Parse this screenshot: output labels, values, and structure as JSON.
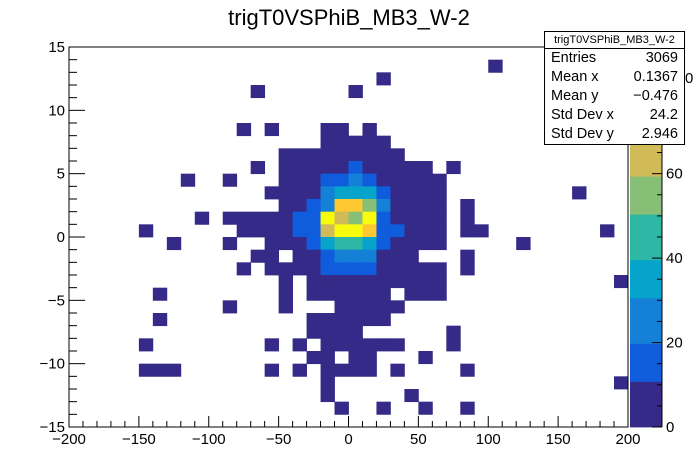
{
  "chart_data": {
    "type": "heatmap",
    "title": "trigT0VSPhiB_MB3_W-2",
    "xlabel": "",
    "ylabel": "",
    "xlim": [
      -200,
      200
    ],
    "ylim": [
      -15,
      15
    ],
    "x_ticks": [
      -200,
      -150,
      -100,
      -50,
      0,
      50,
      100,
      150,
      200
    ],
    "x_tick_labels": [
      "−200",
      "−150",
      "−100",
      "−50",
      "0",
      "50",
      "100",
      "150",
      "200"
    ],
    "y_ticks": [
      -15,
      -10,
      -5,
      0,
      5,
      10,
      15
    ],
    "y_tick_labels": [
      "−15",
      "−10",
      "−5",
      "0",
      "5",
      "10",
      "15"
    ],
    "z_ticks": [
      0,
      20,
      40,
      60,
      80
    ],
    "z_tick_labels": [
      "0",
      "20",
      "40",
      "60",
      "80"
    ],
    "zlim": [
      0,
      90
    ],
    "bin_width_x": 10,
    "bin_height_y": 1,
    "colormap": [
      "#352a87",
      "#0f5cdd",
      "#1481d6",
      "#06a4ca",
      "#2eb7a4",
      "#87bf77",
      "#d1bb59",
      "#fec832",
      "#f9fb0e"
    ],
    "cells": [
      [
        105,
        13.5,
        2
      ],
      [
        25,
        12.5,
        2
      ],
      [
        -65,
        11.5,
        2
      ],
      [
        5,
        11.5,
        2
      ],
      [
        -75,
        8.5,
        2
      ],
      [
        -55,
        8.5,
        2
      ],
      [
        -15,
        8.5,
        3
      ],
      [
        -5,
        8.5,
        3
      ],
      [
        15,
        8.5,
        2
      ],
      [
        -15,
        7.5,
        4
      ],
      [
        -5,
        7.5,
        4
      ],
      [
        5,
        7.5,
        3
      ],
      [
        15,
        7.5,
        3
      ],
      [
        25,
        7.5,
        2
      ],
      [
        -45,
        6.5,
        2
      ],
      [
        -35,
        6.5,
        2
      ],
      [
        -25,
        6.5,
        2
      ],
      [
        -15,
        6.5,
        4
      ],
      [
        -5,
        6.5,
        5
      ],
      [
        5,
        6.5,
        4
      ],
      [
        15,
        6.5,
        3
      ],
      [
        25,
        6.5,
        3
      ],
      [
        35,
        6.5,
        2
      ],
      [
        -65,
        5.5,
        2
      ],
      [
        -45,
        5.5,
        3
      ],
      [
        -35,
        5.5,
        3
      ],
      [
        -25,
        5.5,
        4
      ],
      [
        -15,
        5.5,
        5
      ],
      [
        -5,
        5.5,
        8
      ],
      [
        5,
        5.5,
        10
      ],
      [
        15,
        5.5,
        6
      ],
      [
        25,
        5.5,
        4
      ],
      [
        35,
        5.5,
        3
      ],
      [
        45,
        5.5,
        2
      ],
      [
        55,
        5.5,
        2
      ],
      [
        75,
        5.5,
        2
      ],
      [
        -115,
        4.5,
        2
      ],
      [
        -85,
        4.5,
        2
      ],
      [
        -45,
        4.5,
        3
      ],
      [
        -35,
        4.5,
        4
      ],
      [
        -25,
        4.5,
        5
      ],
      [
        -15,
        4.5,
        12
      ],
      [
        -5,
        4.5,
        18
      ],
      [
        5,
        4.5,
        20
      ],
      [
        15,
        4.5,
        15
      ],
      [
        25,
        4.5,
        8
      ],
      [
        35,
        4.5,
        5
      ],
      [
        45,
        4.5,
        3
      ],
      [
        55,
        4.5,
        2
      ],
      [
        65,
        4.5,
        2
      ],
      [
        -55,
        3.5,
        2
      ],
      [
        -45,
        3.5,
        3
      ],
      [
        -35,
        3.5,
        4
      ],
      [
        -25,
        3.5,
        6
      ],
      [
        -15,
        3.5,
        22
      ],
      [
        -5,
        3.5,
        35
      ],
      [
        5,
        3.5,
        38
      ],
      [
        15,
        3.5,
        30
      ],
      [
        25,
        3.5,
        12
      ],
      [
        35,
        3.5,
        6
      ],
      [
        45,
        3.5,
        3
      ],
      [
        55,
        3.5,
        2
      ],
      [
        65,
        3.5,
        2
      ],
      [
        165,
        3.5,
        2
      ],
      [
        -45,
        2.5,
        3
      ],
      [
        -35,
        2.5,
        5
      ],
      [
        -25,
        2.5,
        10
      ],
      [
        -15,
        2.5,
        25
      ],
      [
        -5,
        2.5,
        70
      ],
      [
        5,
        2.5,
        75
      ],
      [
        15,
        2.5,
        55
      ],
      [
        25,
        2.5,
        20
      ],
      [
        35,
        2.5,
        8
      ],
      [
        45,
        2.5,
        5
      ],
      [
        55,
        2.5,
        3
      ],
      [
        65,
        2.5,
        2
      ],
      [
        85,
        2.5,
        2
      ],
      [
        -105,
        1.5,
        2
      ],
      [
        -85,
        1.5,
        3
      ],
      [
        -75,
        1.5,
        3
      ],
      [
        -65,
        1.5,
        3
      ],
      [
        -55,
        1.5,
        5
      ],
      [
        -45,
        1.5,
        5
      ],
      [
        -35,
        1.5,
        12
      ],
      [
        -25,
        1.5,
        18
      ],
      [
        -15,
        1.5,
        88
      ],
      [
        -5,
        1.5,
        68
      ],
      [
        5,
        1.5,
        55
      ],
      [
        15,
        1.5,
        80
      ],
      [
        25,
        1.5,
        15
      ],
      [
        35,
        1.5,
        8
      ],
      [
        45,
        1.5,
        5
      ],
      [
        55,
        1.5,
        3
      ],
      [
        65,
        1.5,
        2
      ],
      [
        85,
        1.5,
        2
      ],
      [
        -145,
        0.5,
        2
      ],
      [
        -75,
        0.5,
        2
      ],
      [
        -65,
        0.5,
        3
      ],
      [
        -55,
        0.5,
        4
      ],
      [
        -45,
        0.5,
        5
      ],
      [
        -35,
        0.5,
        10
      ],
      [
        -25,
        0.5,
        15
      ],
      [
        -15,
        0.5,
        60
      ],
      [
        -5,
        0.5,
        85
      ],
      [
        5,
        0.5,
        90
      ],
      [
        15,
        0.5,
        72
      ],
      [
        25,
        0.5,
        18
      ],
      [
        35,
        0.5,
        10
      ],
      [
        45,
        0.5,
        5
      ],
      [
        55,
        0.5,
        4
      ],
      [
        65,
        0.5,
        3
      ],
      [
        85,
        0.5,
        2
      ],
      [
        95,
        0.5,
        2
      ],
      [
        185,
        0.5,
        2
      ],
      [
        -125,
        -0.5,
        2
      ],
      [
        -85,
        -0.5,
        2
      ],
      [
        -55,
        -0.5,
        3
      ],
      [
        -45,
        -0.5,
        4
      ],
      [
        -35,
        -0.5,
        8
      ],
      [
        -25,
        -0.5,
        12
      ],
      [
        -15,
        -0.5,
        32
      ],
      [
        -5,
        -0.5,
        40
      ],
      [
        5,
        -0.5,
        42
      ],
      [
        15,
        -0.5,
        30
      ],
      [
        25,
        -0.5,
        14
      ],
      [
        35,
        -0.5,
        8
      ],
      [
        45,
        -0.5,
        5
      ],
      [
        55,
        -0.5,
        3
      ],
      [
        65,
        -0.5,
        2
      ],
      [
        125,
        -0.5,
        2
      ],
      [
        -65,
        -1.5,
        2
      ],
      [
        -55,
        -1.5,
        3
      ],
      [
        -35,
        -1.5,
        4
      ],
      [
        -25,
        -1.5,
        8
      ],
      [
        -15,
        -1.5,
        14
      ],
      [
        -5,
        -1.5,
        24
      ],
      [
        5,
        -1.5,
        26
      ],
      [
        15,
        -1.5,
        20
      ],
      [
        25,
        -1.5,
        8
      ],
      [
        35,
        -1.5,
        5
      ],
      [
        45,
        -1.5,
        3
      ],
      [
        85,
        -1.5,
        2
      ],
      [
        -75,
        -2.5,
        2
      ],
      [
        -55,
        -2.5,
        3
      ],
      [
        -45,
        -2.5,
        4
      ],
      [
        -35,
        -2.5,
        5
      ],
      [
        -25,
        -2.5,
        7
      ],
      [
        -15,
        -2.5,
        10
      ],
      [
        -5,
        -2.5,
        12
      ],
      [
        5,
        -2.5,
        12
      ],
      [
        15,
        -2.5,
        10
      ],
      [
        25,
        -2.5,
        6
      ],
      [
        35,
        -2.5,
        4
      ],
      [
        45,
        -2.5,
        3
      ],
      [
        55,
        -2.5,
        2
      ],
      [
        65,
        -2.5,
        2
      ],
      [
        85,
        -2.5,
        2
      ],
      [
        -45,
        -3.5,
        2
      ],
      [
        -25,
        -3.5,
        3
      ],
      [
        -15,
        -3.5,
        5
      ],
      [
        -5,
        -3.5,
        6
      ],
      [
        5,
        -3.5,
        6
      ],
      [
        15,
        -3.5,
        5
      ],
      [
        25,
        -3.5,
        3
      ],
      [
        35,
        -3.5,
        3
      ],
      [
        45,
        -3.5,
        2
      ],
      [
        55,
        -3.5,
        2
      ],
      [
        65,
        -3.5,
        2
      ],
      [
        195,
        -3.5,
        2
      ],
      [
        -135,
        -4.5,
        2
      ],
      [
        -45,
        -4.5,
        2
      ],
      [
        -25,
        -4.5,
        3
      ],
      [
        -15,
        -4.5,
        3
      ],
      [
        -5,
        -4.5,
        4
      ],
      [
        5,
        -4.5,
        4
      ],
      [
        15,
        -4.5,
        3
      ],
      [
        25,
        -4.5,
        2
      ],
      [
        45,
        -4.5,
        2
      ],
      [
        55,
        -4.5,
        2
      ],
      [
        65,
        -4.5,
        2
      ],
      [
        -85,
        -5.5,
        2
      ],
      [
        -45,
        -5.5,
        2
      ],
      [
        -5,
        -5.5,
        3
      ],
      [
        5,
        -5.5,
        3
      ],
      [
        15,
        -5.5,
        3
      ],
      [
        25,
        -5.5,
        2
      ],
      [
        35,
        -5.5,
        2
      ],
      [
        -135,
        -6.5,
        2
      ],
      [
        -25,
        -6.5,
        2
      ],
      [
        -15,
        -6.5,
        2
      ],
      [
        -5,
        -6.5,
        2
      ],
      [
        5,
        -6.5,
        2
      ],
      [
        15,
        -6.5,
        2
      ],
      [
        25,
        -6.5,
        2
      ],
      [
        -25,
        -7.5,
        2
      ],
      [
        -15,
        -7.5,
        2
      ],
      [
        -5,
        -7.5,
        2
      ],
      [
        5,
        -7.5,
        2
      ],
      [
        75,
        -7.5,
        2
      ],
      [
        -145,
        -8.5,
        2
      ],
      [
        -55,
        -8.5,
        2
      ],
      [
        -35,
        -8.5,
        2
      ],
      [
        -15,
        -8.5,
        2
      ],
      [
        -5,
        -8.5,
        3
      ],
      [
        5,
        -8.5,
        2
      ],
      [
        15,
        -8.5,
        2
      ],
      [
        25,
        -8.5,
        2
      ],
      [
        35,
        -8.5,
        2
      ],
      [
        75,
        -8.5,
        2
      ],
      [
        -25,
        -9.5,
        2
      ],
      [
        -15,
        -9.5,
        2
      ],
      [
        5,
        -9.5,
        2
      ],
      [
        15,
        -9.5,
        2
      ],
      [
        55,
        -9.5,
        2
      ],
      [
        -145,
        -10.5,
        2
      ],
      [
        -135,
        -10.5,
        2
      ],
      [
        -125,
        -10.5,
        2
      ],
      [
        -55,
        -10.5,
        2
      ],
      [
        -35,
        -10.5,
        2
      ],
      [
        -15,
        -10.5,
        2
      ],
      [
        -5,
        -10.5,
        2
      ],
      [
        5,
        -10.5,
        2
      ],
      [
        15,
        -10.5,
        2
      ],
      [
        35,
        -10.5,
        2
      ],
      [
        85,
        -10.5,
        2
      ],
      [
        -15,
        -11.5,
        2
      ],
      [
        195,
        -11.5,
        2
      ],
      [
        -15,
        -12.5,
        2
      ],
      [
        45,
        -12.5,
        2
      ],
      [
        -5,
        -13.5,
        2
      ],
      [
        25,
        -13.5,
        2
      ],
      [
        55,
        -13.5,
        2
      ],
      [
        85,
        -13.5,
        2
      ]
    ],
    "stats": {
      "title": "trigT0VSPhiB_MB3_W-2",
      "rows": [
        {
          "label": "Entries",
          "value": "3069"
        },
        {
          "label": "Mean x",
          "value": "0.1367"
        },
        {
          "label": "Mean y",
          "value": "−0.476"
        },
        {
          "label": "Std Dev x",
          "value": "24.2"
        },
        {
          "label": "Std Dev y",
          "value": "2.946"
        }
      ]
    },
    "overflow_text": "0"
  }
}
